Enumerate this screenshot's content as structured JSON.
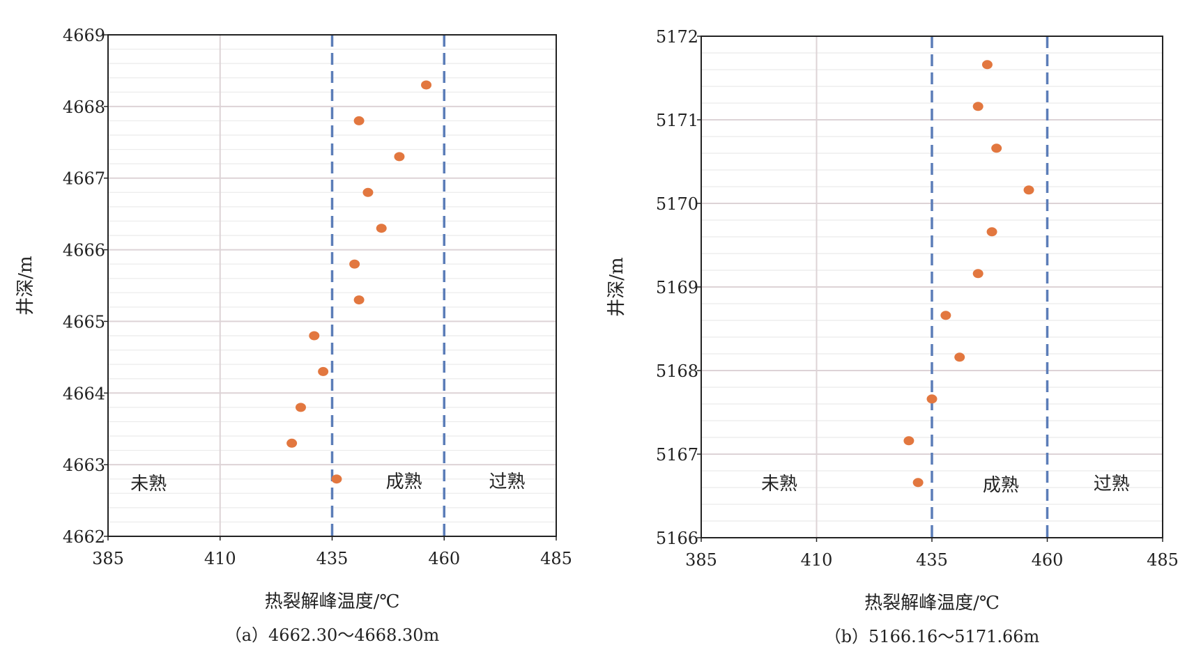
{
  "colors": {
    "point": "#E2773F",
    "threshold": "#5B7DB8",
    "major_grid": "#DDD3D6",
    "minor_grid": "#EBEBEB",
    "axis": "#222222"
  },
  "chart_data": [
    {
      "type": "scatter",
      "caption": "（a）4662.30～4668.30m",
      "xlabel": "热裂解峰温度/℃",
      "ylabel": "井深/m",
      "xlim": [
        385,
        485
      ],
      "ylim": [
        4662,
        4669
      ],
      "x_ticks": [
        385,
        410,
        435,
        460,
        485
      ],
      "y_ticks": [
        4662,
        4663,
        4664,
        4665,
        4666,
        4667,
        4668,
        4669
      ],
      "y_minor_step": 0.2,
      "vertical_ref": 410,
      "thresholds": [
        435,
        460
      ],
      "zones": [
        {
          "label": "未熟",
          "x": 390,
          "y": 4662.75
        },
        {
          "label": "成熟",
          "x": 447,
          "y": 4662.78
        },
        {
          "label": "过熟",
          "x": 470,
          "y": 4662.78
        }
      ],
      "points": [
        {
          "x": 456,
          "y": 4668.3
        },
        {
          "x": 441,
          "y": 4667.8
        },
        {
          "x": 450,
          "y": 4667.3
        },
        {
          "x": 443,
          "y": 4666.8
        },
        {
          "x": 446,
          "y": 4666.3
        },
        {
          "x": 440,
          "y": 4665.8
        },
        {
          "x": 441,
          "y": 4665.3
        },
        {
          "x": 431,
          "y": 4664.8
        },
        {
          "x": 433,
          "y": 4664.3
        },
        {
          "x": 428,
          "y": 4663.8
        },
        {
          "x": 426,
          "y": 4663.3
        },
        {
          "x": 436,
          "y": 4662.8
        }
      ]
    },
    {
      "type": "scatter",
      "caption": "（b）5166.16～5171.66m",
      "xlabel": "热裂解峰温度/℃",
      "ylabel": "井深/m",
      "xlim": [
        385,
        485
      ],
      "ylim": [
        5166,
        5172
      ],
      "x_ticks": [
        385,
        410,
        435,
        460,
        485
      ],
      "y_ticks": [
        5166,
        5167,
        5168,
        5169,
        5170,
        5171,
        5172
      ],
      "y_minor_step": 0.2,
      "vertical_ref": 410,
      "thresholds": [
        435,
        460
      ],
      "zones": [
        {
          "label": "未熟",
          "x": 398,
          "y": 5166.66
        },
        {
          "label": "成熟",
          "x": 446,
          "y": 5166.64
        },
        {
          "label": "过熟",
          "x": 470,
          "y": 5166.66
        }
      ],
      "points": [
        {
          "x": 447,
          "y": 5171.66
        },
        {
          "x": 445,
          "y": 5171.16
        },
        {
          "x": 449,
          "y": 5170.66
        },
        {
          "x": 456,
          "y": 5170.16
        },
        {
          "x": 448,
          "y": 5169.66
        },
        {
          "x": 445,
          "y": 5169.16
        },
        {
          "x": 438,
          "y": 5168.66
        },
        {
          "x": 441,
          "y": 5168.16
        },
        {
          "x": 435,
          "y": 5167.66
        },
        {
          "x": 430,
          "y": 5167.16
        },
        {
          "x": 432,
          "y": 5166.66
        }
      ]
    }
  ]
}
